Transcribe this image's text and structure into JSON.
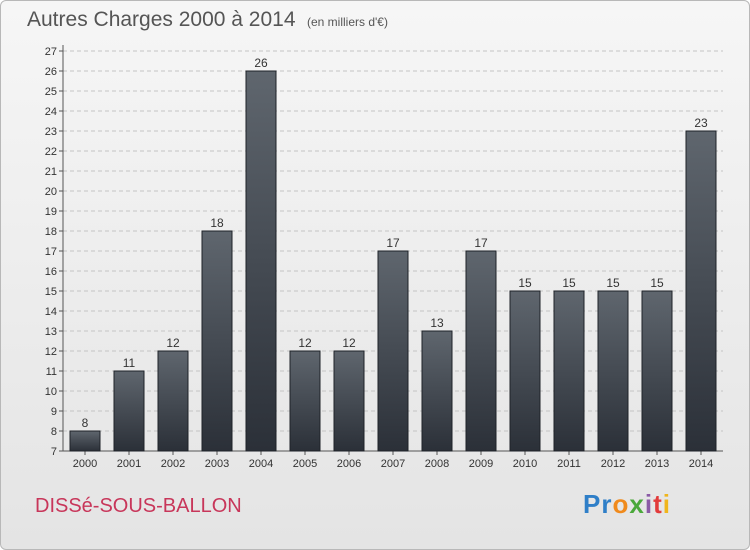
{
  "header": {
    "title": "Autres Charges 2000 à 2014",
    "subtitle": "(en milliers d'€)"
  },
  "footer": {
    "commune": "DISSé-SOUS-BALLON",
    "logo": {
      "text": "Proxiti",
      "letters": [
        {
          "char": "P",
          "color": "#2f7fc8"
        },
        {
          "char": "r",
          "color": "#2f7fc8"
        },
        {
          "char": "o",
          "color": "#f08a1c"
        },
        {
          "char": "x",
          "color": "#4aa83a"
        },
        {
          "char": "i",
          "color": "#8b5aa6"
        },
        {
          "char": "t",
          "color": "#e23b3b"
        },
        {
          "char": "i",
          "color": "#f0b51c"
        }
      ]
    }
  },
  "chart_data": {
    "type": "bar",
    "title": "Autres Charges 2000 à 2014",
    "subtitle": "(en milliers d'€)",
    "categories": [
      "2000",
      "2001",
      "2002",
      "2003",
      "2004",
      "2005",
      "2006",
      "2007",
      "2008",
      "2009",
      "2010",
      "2011",
      "2012",
      "2013",
      "2014"
    ],
    "values": [
      8,
      11,
      12,
      18,
      26,
      12,
      12,
      17,
      13,
      17,
      15,
      15,
      15,
      15,
      23
    ],
    "ylim": [
      7,
      27
    ],
    "ytick_step": 1,
    "grid": true,
    "xlabel": "",
    "ylabel": "",
    "bar_color_top": "#5f666e",
    "bar_color_bottom": "#2b3038"
  }
}
